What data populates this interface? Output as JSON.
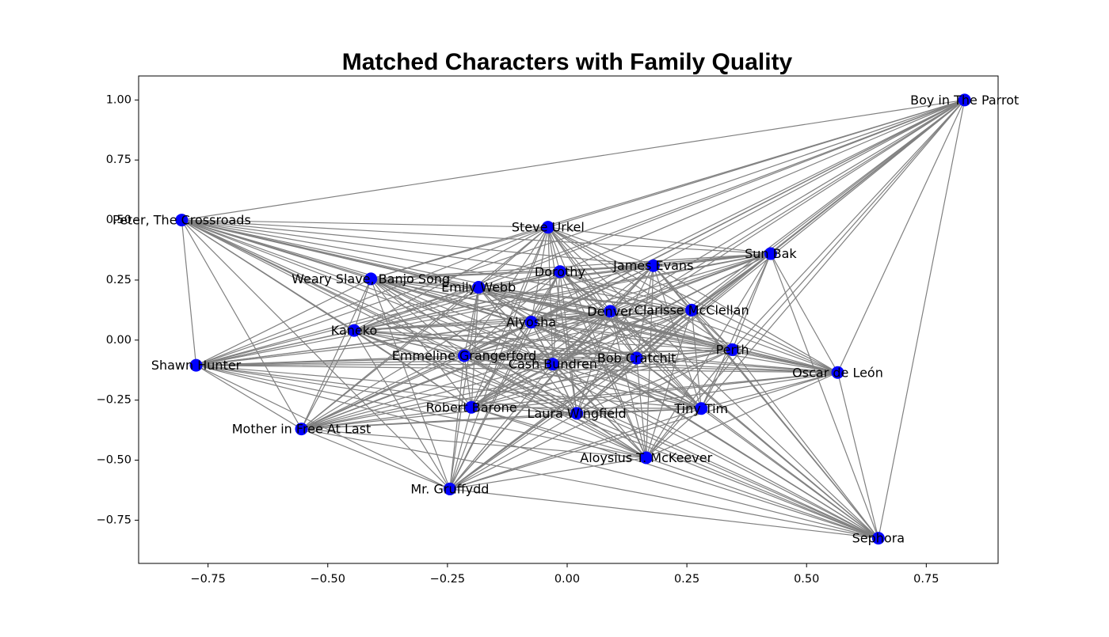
{
  "chart_data": {
    "type": "network",
    "title": "Matched Characters with Family Quality",
    "xlabel": "",
    "ylabel": "",
    "xlim": [
      -0.895,
      0.9
    ],
    "ylim": [
      -0.93,
      1.1
    ],
    "grid": false,
    "x_ticks": [
      -0.75,
      -0.5,
      -0.25,
      0.0,
      0.25,
      0.5,
      0.75
    ],
    "x_tick_labels": [
      "−0.75",
      "−0.50",
      "−0.25",
      "0.00",
      "0.25",
      "0.50",
      "0.75"
    ],
    "y_ticks": [
      1.0,
      0.75,
      0.5,
      0.25,
      0.0,
      -0.25,
      -0.5,
      -0.75
    ],
    "y_tick_labels": [
      "1.00",
      "0.75",
      "0.50",
      "0.25",
      "0.00",
      "−0.25",
      "−0.50",
      "−0.75"
    ],
    "node_color": "#0000ff",
    "edge_color": "#808080",
    "nodes": [
      {
        "label": "Boy in The Parrot",
        "x": 0.83,
        "y": 1.0
      },
      {
        "label": "Peter, The Crossroads",
        "x": -0.805,
        "y": 0.5
      },
      {
        "label": "Steve Urkel",
        "x": -0.04,
        "y": 0.47
      },
      {
        "label": "Sun Bak",
        "x": 0.425,
        "y": 0.36
      },
      {
        "label": "James Evans",
        "x": 0.18,
        "y": 0.31
      },
      {
        "label": "Dorothy",
        "x": -0.015,
        "y": 0.285
      },
      {
        "label": "Weary Slave, Banjo Song",
        "x": -0.41,
        "y": 0.255
      },
      {
        "label": "Emily Webb",
        "x": -0.185,
        "y": 0.22
      },
      {
        "label": "Denver",
        "x": 0.09,
        "y": 0.12
      },
      {
        "label": "Clarisse McClellan",
        "x": 0.26,
        "y": 0.125
      },
      {
        "label": "Alyosha",
        "x": -0.075,
        "y": 0.075
      },
      {
        "label": "Kaneko",
        "x": -0.445,
        "y": 0.04
      },
      {
        "label": "Perth",
        "x": 0.345,
        "y": -0.04
      },
      {
        "label": "Emmeline Grangerford",
        "x": -0.215,
        "y": -0.065
      },
      {
        "label": "Bob Cratchit",
        "x": 0.145,
        "y": -0.075
      },
      {
        "label": "Cash Bundren",
        "x": -0.03,
        "y": -0.1
      },
      {
        "label": "Shawn Hunter",
        "x": -0.775,
        "y": -0.105
      },
      {
        "label": "Oscar de León",
        "x": 0.565,
        "y": -0.135
      },
      {
        "label": "Robert Barone",
        "x": -0.2,
        "y": -0.28
      },
      {
        "label": "Tiny Tim",
        "x": 0.28,
        "y": -0.285
      },
      {
        "label": "Laura Wingfield",
        "x": 0.02,
        "y": -0.305
      },
      {
        "label": "Mother in Free At Last",
        "x": -0.555,
        "y": -0.37
      },
      {
        "label": "Aloysius T. McKeever",
        "x": 0.165,
        "y": -0.49
      },
      {
        "label": "Mr. Gruffydd",
        "x": -0.245,
        "y": -0.62
      },
      {
        "label": "Sephora",
        "x": 0.65,
        "y": -0.825
      }
    ],
    "edges": "all pairs (complete graph)"
  }
}
